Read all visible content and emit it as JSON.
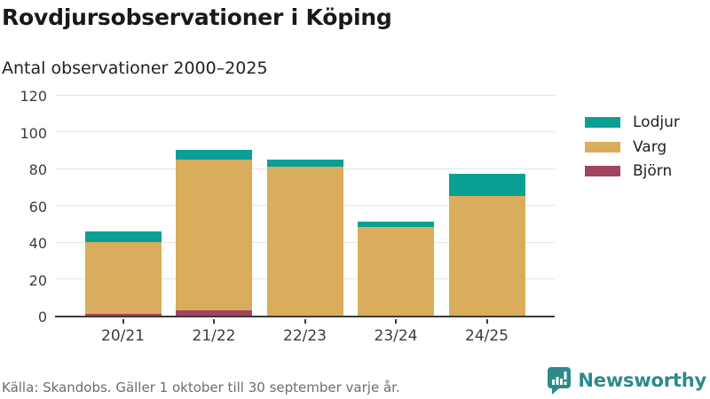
{
  "header": {
    "title": "Rovdjursobservationer i Köping",
    "subtitle": "Antal observationer 2000–2025"
  },
  "chart_data": {
    "type": "bar",
    "stacked": true,
    "title": "Rovdjursobservationer i Köping",
    "subtitle": "Antal observationer 2000–2025",
    "categories": [
      "20/21",
      "21/22",
      "22/23",
      "23/24",
      "24/25"
    ],
    "series": [
      {
        "name": "Lodjur",
        "color": "#0a9f94",
        "values": [
          6,
          5,
          4,
          3,
          12
        ]
      },
      {
        "name": "Varg",
        "color": "#d9ad5b",
        "values": [
          39,
          82,
          81,
          48,
          65
        ]
      },
      {
        "name": "Björn",
        "color": "#a4435f",
        "values": [
          1,
          3,
          0,
          0,
          0
        ]
      }
    ],
    "totals": [
      46,
      90,
      85,
      51,
      77
    ],
    "stack_order_bottom_to_top": [
      "Björn",
      "Varg",
      "Lodjur"
    ],
    "xlabel": "",
    "ylabel": "",
    "ylim": [
      0,
      120
    ],
    "yticks": [
      0,
      20,
      40,
      60,
      80,
      100,
      120
    ],
    "grid": true,
    "legend_position": "right"
  },
  "footer": {
    "source": "Källa: Skandobs. Gäller 1 oktober till 30 september varje år.",
    "brand": "Newsworthy"
  },
  "style": {
    "lodjur_teal": "#0a9f94",
    "varg_gold": "#d9ad5b",
    "bjorn_maroon": "#a4435f",
    "brand_teal": "#2e8a8a",
    "axis_dark": "#3a3a3a",
    "gridline_gray": "#e4e4e4",
    "text_dark": "#191919",
    "text_muted": "#6d6d6d"
  }
}
